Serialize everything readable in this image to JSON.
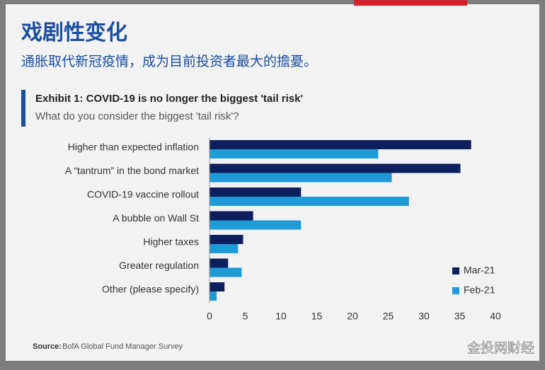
{
  "header": {
    "title": "戏剧性变化",
    "subtitle": "通胀取代新冠疫情，成为目前投资者最大的擔憂。"
  },
  "chart_data": {
    "type": "bar",
    "orientation": "horizontal",
    "title": "Exhibit 1: COVID-19 is no longer the biggest 'tail risk'",
    "subtitle": "What do you consider the biggest 'tail risk'?",
    "categories": [
      "Higher than expected inflation",
      "A “tantrum” in the bond market",
      "COVID-19 vaccine rollout",
      "A bubble on Wall St",
      "Higher taxes",
      "Greater regulation",
      "Other (please specify)"
    ],
    "series": [
      {
        "name": "Mar-21",
        "color": "#0d1f5c",
        "values": [
          36.6,
          35.1,
          12.8,
          6.1,
          4.7,
          2.6,
          2.1
        ]
      },
      {
        "name": "Feb-21",
        "color": "#1e9ad6",
        "values": [
          23.6,
          25.5,
          27.9,
          12.8,
          4.0,
          4.5,
          1.0
        ]
      }
    ],
    "xlim": [
      0,
      40
    ],
    "xticks": [
      0,
      5,
      10,
      15,
      20,
      25,
      30,
      35,
      40
    ],
    "legend": "lower-right",
    "source_label": "Source:",
    "source": "BofA Global Fund Manager Survey"
  },
  "watermark": "金投网财经"
}
